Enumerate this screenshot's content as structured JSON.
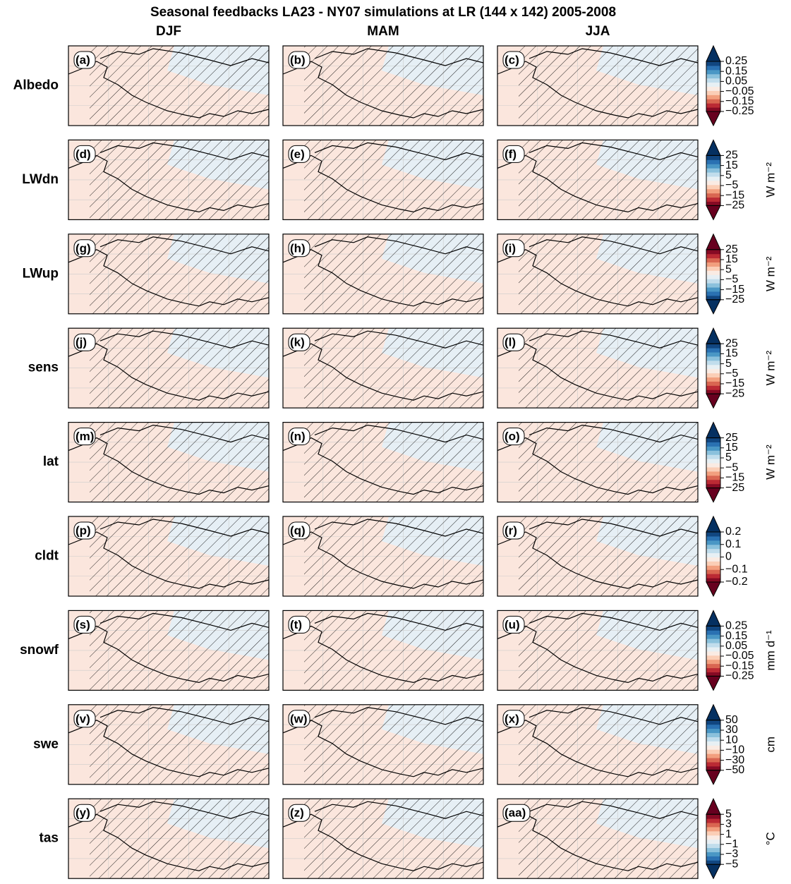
{
  "title": "Seasonal feedbacks LA23 - NY07 simulations at LR (144 x 142) 2005-2008",
  "columns": [
    "DJF",
    "MAM",
    "JJA"
  ],
  "rows": [
    {
      "name": "Albedo",
      "panels": [
        "(a)",
        "(b)",
        "(c)"
      ],
      "colorbar": {
        "cmap": "RdBu",
        "lim": [
          -0.25,
          0.25
        ],
        "ticks": [
          0.25,
          0.15,
          0.05,
          {
            "value": -0.05,
            "label": "−0.05"
          },
          {
            "value": -0.15,
            "label": "−0.15"
          },
          {
            "value": -0.25,
            "label": "−0.25"
          }
        ]
      }
    },
    {
      "name": "LWdn",
      "panels": [
        "(d)",
        "(e)",
        "(f)"
      ],
      "colorbar": {
        "cmap": "RdBu",
        "unit": "W m⁻²",
        "lim": [
          -25,
          25
        ],
        "ticks": [
          25,
          15,
          5,
          {
            "value": -5,
            "label": "−5"
          },
          {
            "value": -15,
            "label": "−15"
          },
          {
            "value": -25,
            "label": "−25"
          }
        ]
      }
    },
    {
      "name": "LWup",
      "panels": [
        "(g)",
        "(h)",
        "(i)"
      ],
      "colorbar": {
        "cmap": "RdBu_r",
        "unit": "W m⁻²",
        "lim": [
          -25,
          25
        ],
        "ticks": [
          25,
          15,
          5,
          {
            "value": -5,
            "label": "−5"
          },
          {
            "value": -15,
            "label": "−15"
          },
          {
            "value": -25,
            "label": "−25"
          }
        ]
      }
    },
    {
      "name": "sens",
      "panels": [
        "(j)",
        "(k)",
        "(l)"
      ],
      "colorbar": {
        "cmap": "RdBu",
        "unit": "W m⁻²",
        "lim": [
          -25,
          25
        ],
        "ticks": [
          25,
          15,
          5,
          {
            "value": -5,
            "label": "−5"
          },
          {
            "value": -15,
            "label": "−15"
          },
          {
            "value": -25,
            "label": "−25"
          }
        ]
      }
    },
    {
      "name": "lat",
      "panels": [
        "(m)",
        "(n)",
        "(o)"
      ],
      "colorbar": {
        "cmap": "RdBu",
        "unit": "W m⁻²",
        "lim": [
          -25,
          25
        ],
        "ticks": [
          25,
          15,
          5,
          {
            "value": -5,
            "label": "−5"
          },
          {
            "value": -15,
            "label": "−15"
          },
          {
            "value": -25,
            "label": "−25"
          }
        ]
      }
    },
    {
      "name": "cldt",
      "panels": [
        "(p)",
        "(q)",
        "(r)"
      ],
      "colorbar": {
        "cmap": "RdBu",
        "lim": [
          -0.2,
          0.2
        ],
        "ticks": [
          0.2,
          0.1,
          0,
          {
            "value": -0.1,
            "label": "−0.1"
          },
          {
            "value": -0.2,
            "label": "−0.2"
          }
        ]
      }
    },
    {
      "name": "snowf",
      "panels": [
        "(s)",
        "(t)",
        "(u)"
      ],
      "colorbar": {
        "cmap": "RdBu",
        "unit": "mm d⁻¹",
        "lim": [
          -0.25,
          0.25
        ],
        "ticks": [
          0.25,
          0.15,
          0.05,
          {
            "value": -0.05,
            "label": "−0.05"
          },
          {
            "value": -0.15,
            "label": "−0.15"
          },
          {
            "value": -0.25,
            "label": "−0.25"
          }
        ]
      }
    },
    {
      "name": "swe",
      "panels": [
        "(v)",
        "(w)",
        "(x)"
      ],
      "colorbar": {
        "cmap": "RdBu",
        "unit": "cm",
        "lim": [
          -50,
          50
        ],
        "ticks": [
          50,
          30,
          10,
          {
            "value": -10,
            "label": "−10"
          },
          {
            "value": -30,
            "label": "−30"
          },
          {
            "value": -50,
            "label": "−50"
          }
        ]
      }
    },
    {
      "name": "tas",
      "panels": [
        "(y)",
        "(z)",
        "(aa)"
      ],
      "colorbar": {
        "cmap": "RdBu_r",
        "unit": "°C",
        "lim": [
          -5,
          5
        ],
        "ticks": [
          5,
          3,
          1,
          {
            "value": -1,
            "label": "−1"
          },
          {
            "value": -3,
            "label": "−3"
          },
          {
            "value": -5,
            "label": "−5"
          }
        ]
      }
    }
  ]
}
